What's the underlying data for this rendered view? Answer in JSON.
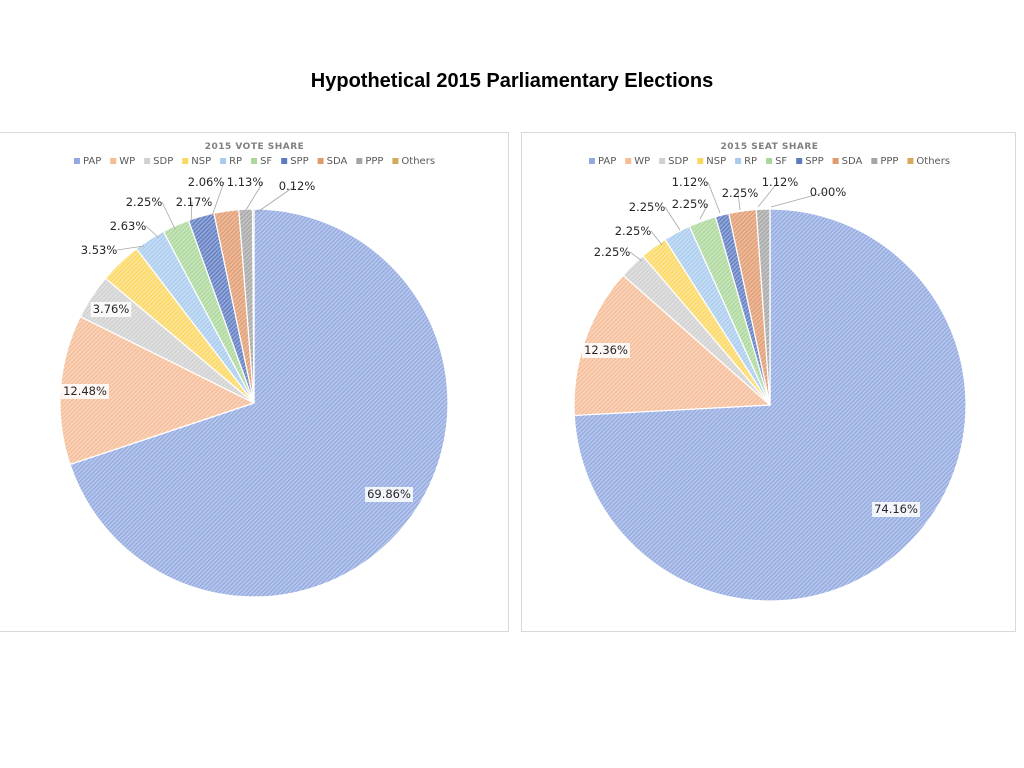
{
  "title": "Hypothetical 2015 Parliamentary Elections",
  "colors": {
    "PAP": "#91a9e0",
    "WP": "#f5bc96",
    "SDP": "#d0d0d0",
    "NSP": "#fcd760",
    "RP": "#a8cbee",
    "SF": "#abd79a",
    "SPP": "#5e7bc2",
    "SDA": "#e19a6e",
    "PPP": "#a5a5a5",
    "Others": "#d5a95c"
  },
  "chart_data": [
    {
      "type": "pie",
      "title": "2015 VOTE SHARE",
      "legend_position": "top",
      "categories": [
        "PAP",
        "WP",
        "SDP",
        "NSP",
        "RP",
        "SF",
        "SPP",
        "SDA",
        "PPP",
        "Others"
      ],
      "values": [
        69.86,
        12.48,
        3.76,
        3.53,
        2.63,
        2.25,
        2.17,
        2.06,
        1.13,
        0.12
      ],
      "labels": [
        "69.86%",
        "12.48%",
        "3.76%",
        "3.53%",
        "2.63%",
        "2.25%",
        "2.17%",
        "2.06%",
        "1.13%",
        "0.12%"
      ]
    },
    {
      "type": "pie",
      "title": "2015 SEAT SHARE",
      "legend_position": "top",
      "categories": [
        "PAP",
        "WP",
        "SDP",
        "NSP",
        "RP",
        "SF",
        "SPP",
        "SDA",
        "PPP",
        "Others"
      ],
      "values": [
        74.16,
        12.36,
        2.25,
        2.25,
        2.25,
        2.25,
        1.12,
        2.25,
        1.12,
        0.0
      ],
      "labels": [
        "74.16%",
        "12.36%",
        "2.25%",
        "2.25%",
        "2.25%",
        "2.25%",
        "1.12%",
        "2.25%",
        "1.12%",
        "0.00%"
      ]
    }
  ]
}
